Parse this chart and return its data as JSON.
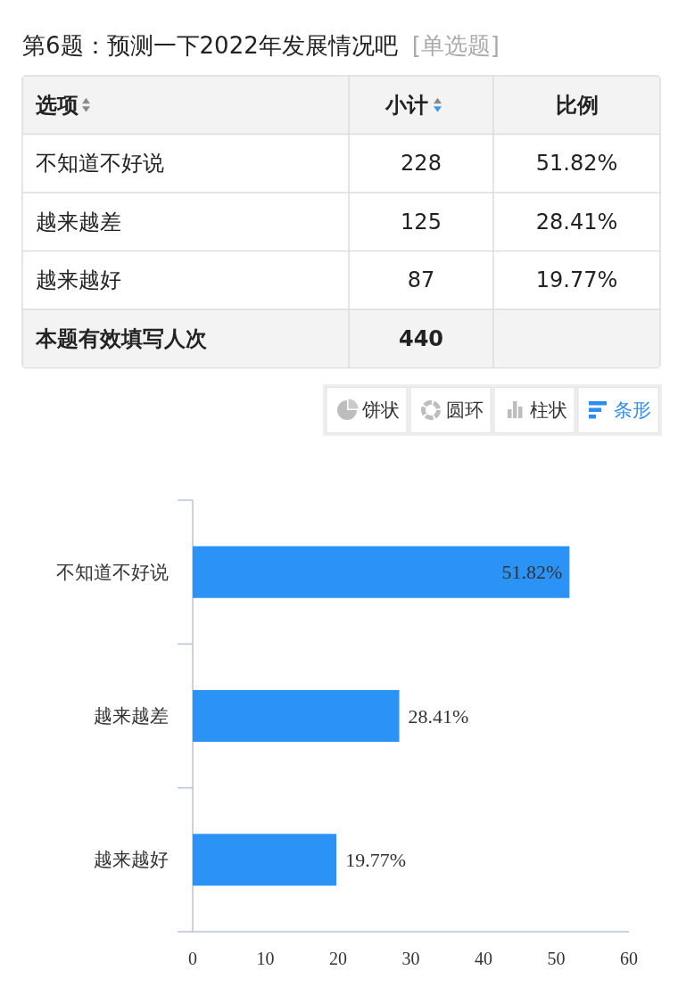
{
  "chart_data": [
    {
      "type": "other",
      "title": "第6题：预测一下2022年发展情况吧",
      "subtitle": "[单选题]",
      "ylabel": "选项",
      "categories": [
        "不知道不好说",
        "越来越差",
        "越来越好"
      ],
      "series": [
        {
          "name": "小计",
          "values": [
            228,
            125,
            87
          ]
        },
        {
          "name": "比例",
          "values": [
            51.82,
            28.41,
            19.77
          ],
          "value_labels": [
            "51.82%",
            "28.41%",
            "19.77%"
          ]
        }
      ],
      "data_labels": true,
      "annotations": [
        "本题有效填写人次",
        "440"
      ]
    },
    {
      "type": "bar",
      "orientation": "horizontal",
      "categories": [
        "不知道不好说",
        "越来越差",
        "越来越好"
      ],
      "values": [
        51.82,
        28.41,
        19.77
      ],
      "value_labels": [
        "51.82%",
        "28.41%",
        "19.77%"
      ],
      "color": "#2b93f6",
      "xlim": [
        0,
        60
      ],
      "xticks": [
        0,
        10,
        20,
        30,
        40,
        50,
        60
      ],
      "annotations": [
        "饼状",
        "圆环",
        "柱状",
        "条形"
      ]
    }
  ]
}
